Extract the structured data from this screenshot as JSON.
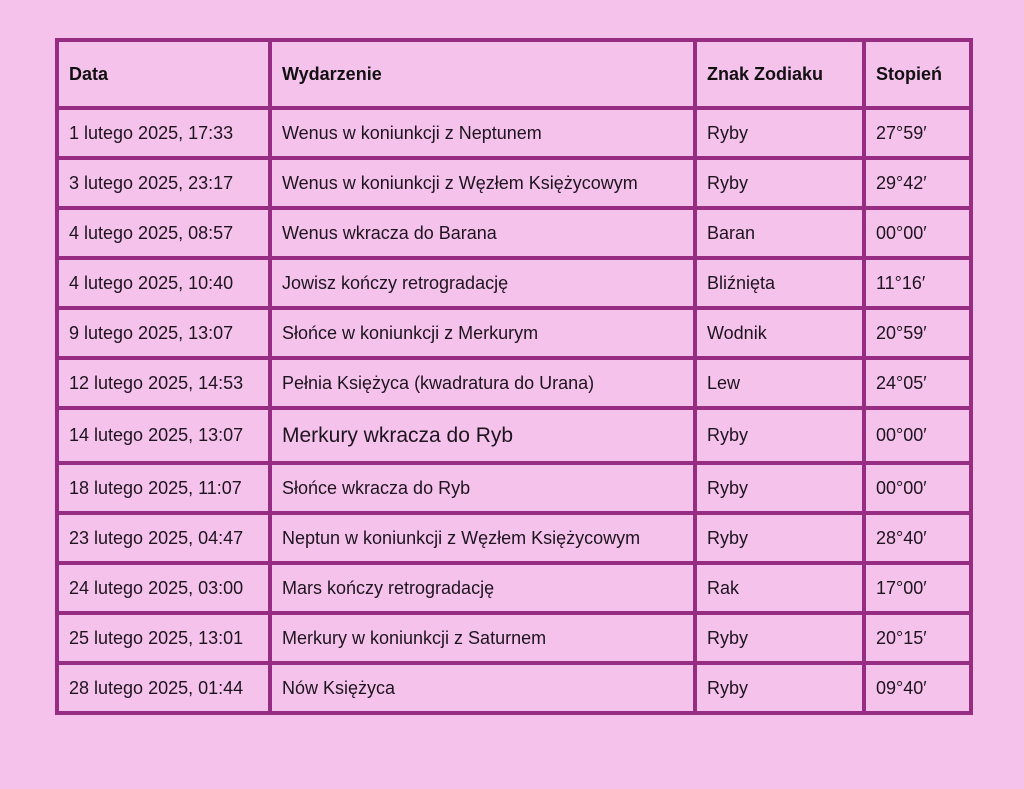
{
  "colors": {
    "background": "#f5c2eb",
    "border": "#962d82",
    "text": "#1e1420"
  },
  "table": {
    "headers": {
      "date": "Data",
      "event": "Wydarzenie",
      "sign": "Znak Zodiaku",
      "degree": "Stopień"
    },
    "rows": [
      {
        "date": "1 lutego 2025, 17:33",
        "event": "Wenus w koniunkcji z Neptunem",
        "sign": "Ryby",
        "degree": "27°59′"
      },
      {
        "date": "3 lutego 2025, 23:17",
        "event": "Wenus w koniunkcji z Węzłem Księżycowym",
        "sign": "Ryby",
        "degree": "29°42′"
      },
      {
        "date": "4 lutego 2025, 08:57",
        "event": "Wenus wkracza do Barana",
        "sign": "Baran",
        "degree": "00°00′"
      },
      {
        "date": "4 lutego 2025, 10:40",
        "event": "Jowisz kończy retrogradację",
        "sign": "Bliźnięta",
        "degree": "11°16′"
      },
      {
        "date": "9 lutego 2025, 13:07",
        "event": "Słońce w koniunkcji z Merkurym",
        "sign": "Wodnik",
        "degree": "20°59′"
      },
      {
        "date": "12 lutego 2025, 14:53",
        "event": "Pełnia Księżyca (kwadratura do Urana)",
        "sign": "Lew",
        "degree": "24°05′"
      },
      {
        "date": "14 lutego 2025, 13:07",
        "event": "Merkury wkracza do Ryb",
        "sign": "Ryby",
        "degree": "00°00′"
      },
      {
        "date": "18 lutego 2025, 11:07",
        "event": "Słońce wkracza do Ryb",
        "sign": "Ryby",
        "degree": "00°00′"
      },
      {
        "date": "23 lutego 2025, 04:47",
        "event": "Neptun w koniunkcji z Węzłem Księżycowym",
        "sign": "Ryby",
        "degree": "28°40′"
      },
      {
        "date": "24 lutego 2025, 03:00",
        "event": "Mars kończy retrogradację",
        "sign": "Rak",
        "degree": "17°00′"
      },
      {
        "date": "25 lutego 2025, 13:01",
        "event": "Merkury w koniunkcji z Saturnem",
        "sign": "Ryby",
        "degree": "20°15′"
      },
      {
        "date": "28 lutego 2025, 01:44",
        "event": "Nów Księżyca",
        "sign": "Ryby",
        "degree": "09°40′"
      }
    ]
  }
}
